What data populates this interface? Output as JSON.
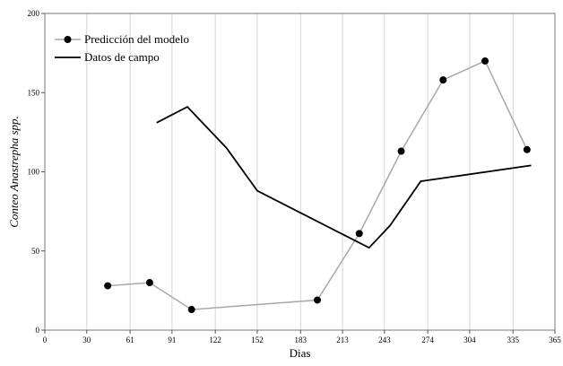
{
  "chart_data": {
    "type": "line",
    "xlabel": "Dias",
    "ylabel": "Conteo Anastrepha spp.",
    "xlim": [
      0,
      365
    ],
    "ylim": [
      0,
      200
    ],
    "xticks": [
      0,
      30,
      61,
      91,
      122,
      152,
      183,
      213,
      243,
      274,
      304,
      335,
      365
    ],
    "yticks": [
      0,
      50,
      100,
      150,
      200
    ],
    "grid": "vertical",
    "legend": "top-left",
    "series": [
      {
        "name": "Predicción del modelo",
        "color": "#a8a8a8",
        "marker": "circle",
        "x": [
          45,
          75,
          105,
          195,
          225,
          255,
          285,
          315,
          345
        ],
        "y": [
          28,
          30,
          13,
          19,
          61,
          113,
          158,
          170,
          114
        ]
      },
      {
        "name": "Datos de campo",
        "color": "#000000",
        "marker": "none",
        "x": [
          80,
          102,
          130,
          152,
          232,
          247,
          269,
          348
        ],
        "y": [
          131,
          141,
          115,
          88,
          52,
          66,
          94,
          104
        ]
      }
    ]
  }
}
